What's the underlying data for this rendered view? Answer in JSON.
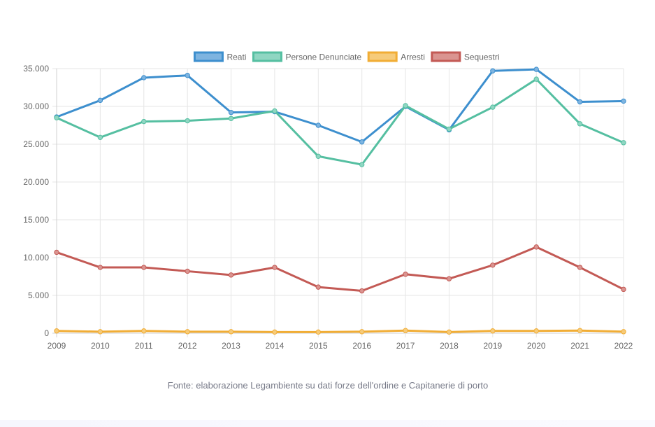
{
  "chart_data": {
    "type": "line",
    "x": [
      "2009",
      "2010",
      "2011",
      "2012",
      "2013",
      "2014",
      "2015",
      "2016",
      "2017",
      "2018",
      "2019",
      "2020",
      "2021",
      "2022"
    ],
    "ylim": [
      0,
      35000
    ],
    "yticks": [
      0,
      5000,
      10000,
      15000,
      20000,
      25000,
      30000,
      35000
    ],
    "ytick_labels": [
      "0",
      "5.000",
      "10.000",
      "15.000",
      "20.000",
      "25.000",
      "30.000",
      "35.000"
    ],
    "grid": true,
    "legend_position": "top",
    "series": [
      {
        "name": "Reati",
        "color": "#3d8fce",
        "fill": "#7eb4e0",
        "values": [
          28600,
          30800,
          33800,
          34100,
          29200,
          29300,
          27500,
          25300,
          30000,
          26900,
          34700,
          34900,
          30600,
          30700
        ]
      },
      {
        "name": "Persone Denunciate",
        "color": "#55bfa1",
        "fill": "#8fd6c2",
        "values": [
          28500,
          25900,
          28000,
          28100,
          28400,
          29400,
          23400,
          22300,
          30100,
          27000,
          29900,
          33600,
          27700,
          25200
        ]
      },
      {
        "name": "Arresti",
        "color": "#f1ad35",
        "fill": "#f6cb7a",
        "values": [
          300,
          200,
          300,
          200,
          200,
          150,
          150,
          200,
          350,
          150,
          300,
          300,
          350,
          200
        ]
      },
      {
        "name": "Sequestri",
        "color": "#c35a55",
        "fill": "#da9490",
        "values": [
          10700,
          8700,
          8700,
          8200,
          7700,
          8700,
          6100,
          5600,
          7800,
          7200,
          9000,
          11400,
          8700,
          5800
        ]
      }
    ],
    "source": "Fonte: elaborazione Legambiente su dati forze dell'ordine e Capitanerie di porto"
  }
}
